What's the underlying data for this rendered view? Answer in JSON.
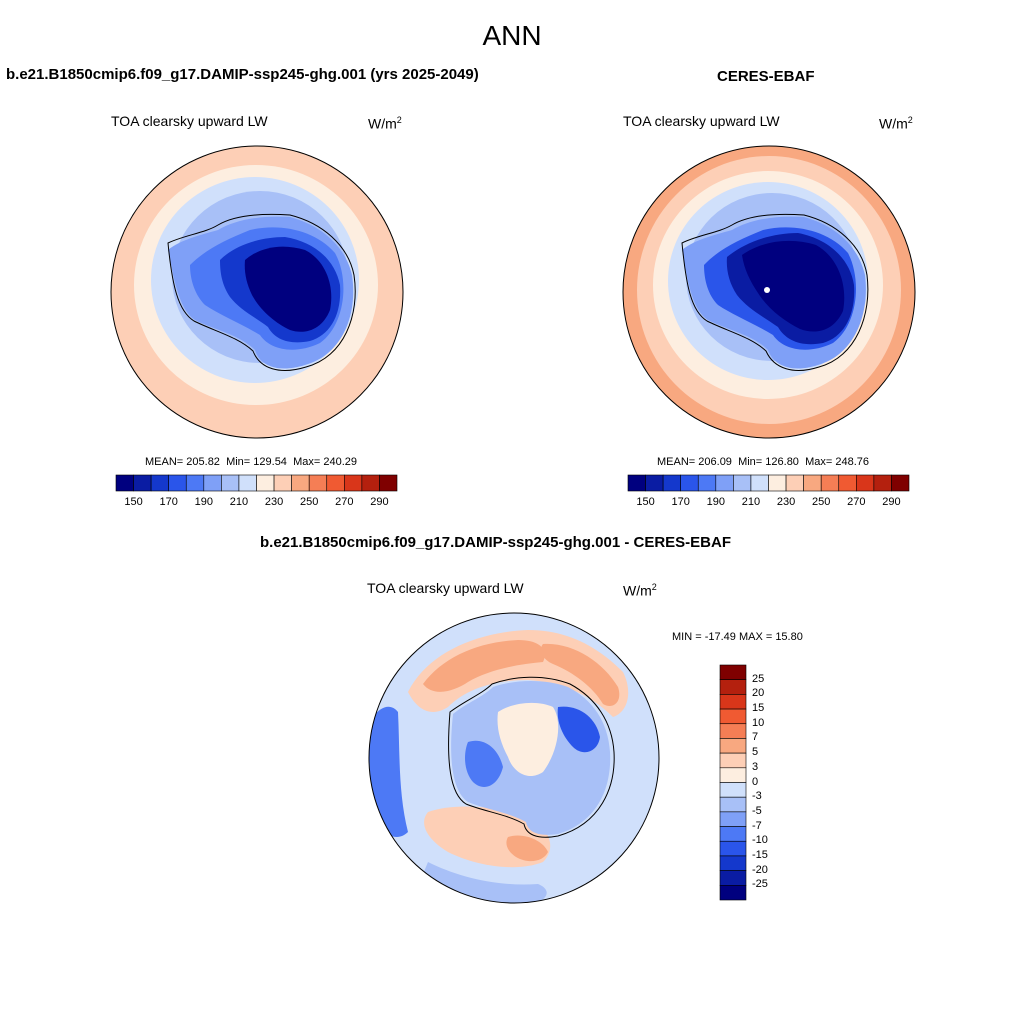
{
  "figure_title": "ANN",
  "units_base": "W/m",
  "units_exp": "2",
  "chart_data": [
    {
      "type": "heatmap",
      "title": "b.e21.B1850cmip6.f09_g17.DAMIP-ssp245-ghg.001 (yrs 2025-2049)",
      "variable": "TOA clearsky upward LW",
      "projection": "south polar stereographic",
      "stats": {
        "mean_label": "MEAN=",
        "mean": "205.82",
        "min_label": "Min=",
        "min": "129.54",
        "max_label": "Max=",
        "max": "240.29"
      },
      "colorbar": {
        "levels": [
          140,
          150,
          160,
          170,
          180,
          190,
          200,
          210,
          220,
          230,
          240,
          250,
          260,
          270,
          280,
          290
        ],
        "tick_labels": [
          "150",
          "170",
          "190",
          "210",
          "230",
          "250",
          "270",
          "290"
        ],
        "colors": [
          "#00007f",
          "#0a1ca3",
          "#1438cc",
          "#2a55ea",
          "#4d79f5",
          "#7fa0f7",
          "#a8c0f7",
          "#d0e0fb",
          "#fdeee0",
          "#fdcfb6",
          "#f8a880",
          "#f57e55",
          "#f05a32",
          "#d9361a",
          "#b4200e",
          "#7f0000"
        ]
      }
    },
    {
      "type": "heatmap",
      "title": "CERES-EBAF",
      "variable": "TOA clearsky upward LW",
      "projection": "south polar stereographic",
      "stats": {
        "mean_label": "MEAN=",
        "mean": "206.09",
        "min_label": "Min=",
        "min": "126.80",
        "max_label": "Max=",
        "max": "248.76"
      },
      "colorbar": {
        "levels": [
          140,
          150,
          160,
          170,
          180,
          190,
          200,
          210,
          220,
          230,
          240,
          250,
          260,
          270,
          280,
          290
        ],
        "tick_labels": [
          "150",
          "170",
          "190",
          "210",
          "230",
          "250",
          "270",
          "290"
        ],
        "colors": [
          "#00007f",
          "#0a1ca3",
          "#1438cc",
          "#2a55ea",
          "#4d79f5",
          "#7fa0f7",
          "#a8c0f7",
          "#d0e0fb",
          "#fdeee0",
          "#fdcfb6",
          "#f8a880",
          "#f57e55",
          "#f05a32",
          "#d9361a",
          "#b4200e",
          "#7f0000"
        ]
      }
    },
    {
      "type": "heatmap",
      "title": "b.e21.B1850cmip6.f09_g17.DAMIP-ssp245-ghg.001 - CERES-EBAF",
      "variable": "TOA clearsky upward LW",
      "projection": "south polar stereographic",
      "stats_text": "MIN = -17.49 MAX =  15.80",
      "colorbar": {
        "levels": [
          25,
          20,
          15,
          10,
          7,
          5,
          3,
          0,
          -3,
          -5,
          -7,
          -10,
          -15,
          -20,
          -25
        ],
        "tick_labels": [
          "25",
          "20",
          "15",
          "10",
          "7",
          "5",
          "3",
          "0",
          "-3",
          "-5",
          "-7",
          "-10",
          "-15",
          "-20",
          "-25"
        ],
        "colors": [
          "#7f0000",
          "#b4200e",
          "#d9361a",
          "#f05a32",
          "#f57e55",
          "#f8a880",
          "#fdcfb6",
          "#fdeee0",
          "#d0e0fb",
          "#a8c0f7",
          "#7fa0f7",
          "#4d79f5",
          "#2a55ea",
          "#1438cc",
          "#0a1ca3",
          "#00007f"
        ]
      }
    }
  ]
}
